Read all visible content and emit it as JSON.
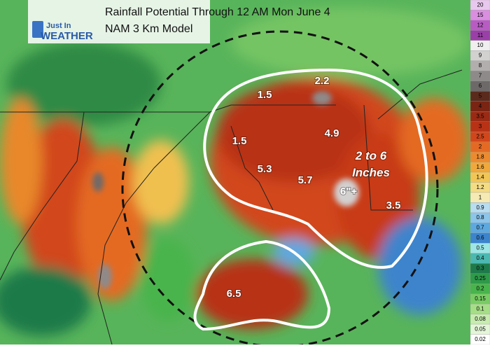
{
  "header": {
    "logo_top": "Just In",
    "logo_bottom": "WEATHER",
    "title": "Rainfall Potential Through 12 AM Mon June 4",
    "subtitle": "NAM 3 Km Model"
  },
  "annotations": [
    "2.2",
    "1.5",
    "1.5",
    "4.9",
    "5.3",
    "5.7",
    "2 to 6",
    "Inches",
    "6\"+",
    "3.5",
    "6.5"
  ],
  "legend": [
    {
      "label": "20",
      "color": "#e9c8ef"
    },
    {
      "label": "15",
      "color": "#d98ee0"
    },
    {
      "label": "12",
      "color": "#b85cc4"
    },
    {
      "label": "11",
      "color": "#9b3fa8"
    },
    {
      "label": "10",
      "color": "#f0eeee"
    },
    {
      "label": "9",
      "color": "#d3d0d0"
    },
    {
      "label": "8",
      "color": "#b2aeae"
    },
    {
      "label": "7",
      "color": "#8e8a8a"
    },
    {
      "label": "6",
      "color": "#6e6969"
    },
    {
      "label": "5",
      "color": "#5a2a1c"
    },
    {
      "label": "4",
      "color": "#7a2414"
    },
    {
      "label": "3.5",
      "color": "#9a2a14"
    },
    {
      "label": "3",
      "color": "#b83216"
    },
    {
      "label": "2.5",
      "color": "#d2461c"
    },
    {
      "label": "2",
      "color": "#e46a24"
    },
    {
      "label": "1.8",
      "color": "#ec8a30"
    },
    {
      "label": "1.6",
      "color": "#f0a83c"
    },
    {
      "label": "1.4",
      "color": "#f2c656"
    },
    {
      "label": "1.2",
      "color": "#f4dc84"
    },
    {
      "label": "1",
      "color": "#f6eab4"
    },
    {
      "label": "0.9",
      "color": "#b8dcf0"
    },
    {
      "label": "0.8",
      "color": "#8cc4ea"
    },
    {
      "label": "0.7",
      "color": "#5ea8e0"
    },
    {
      "label": "0.6",
      "color": "#3c84cc"
    },
    {
      "label": "0.5",
      "color": "#9ee6e6"
    },
    {
      "label": "0.4",
      "color": "#4cb8b0"
    },
    {
      "label": "0.3",
      "color": "#1e7a4a"
    },
    {
      "label": "0.25",
      "color": "#2e9a4a"
    },
    {
      "label": "0.2",
      "color": "#48b44c"
    },
    {
      "label": "0.15",
      "color": "#78cc64"
    },
    {
      "label": "0.1",
      "color": "#a6de88"
    },
    {
      "label": "0.08",
      "color": "#c8ecb0"
    },
    {
      "label": "0.05",
      "color": "#e4f6d8"
    },
    {
      "label": "0.02",
      "color": "#ffffff"
    }
  ]
}
